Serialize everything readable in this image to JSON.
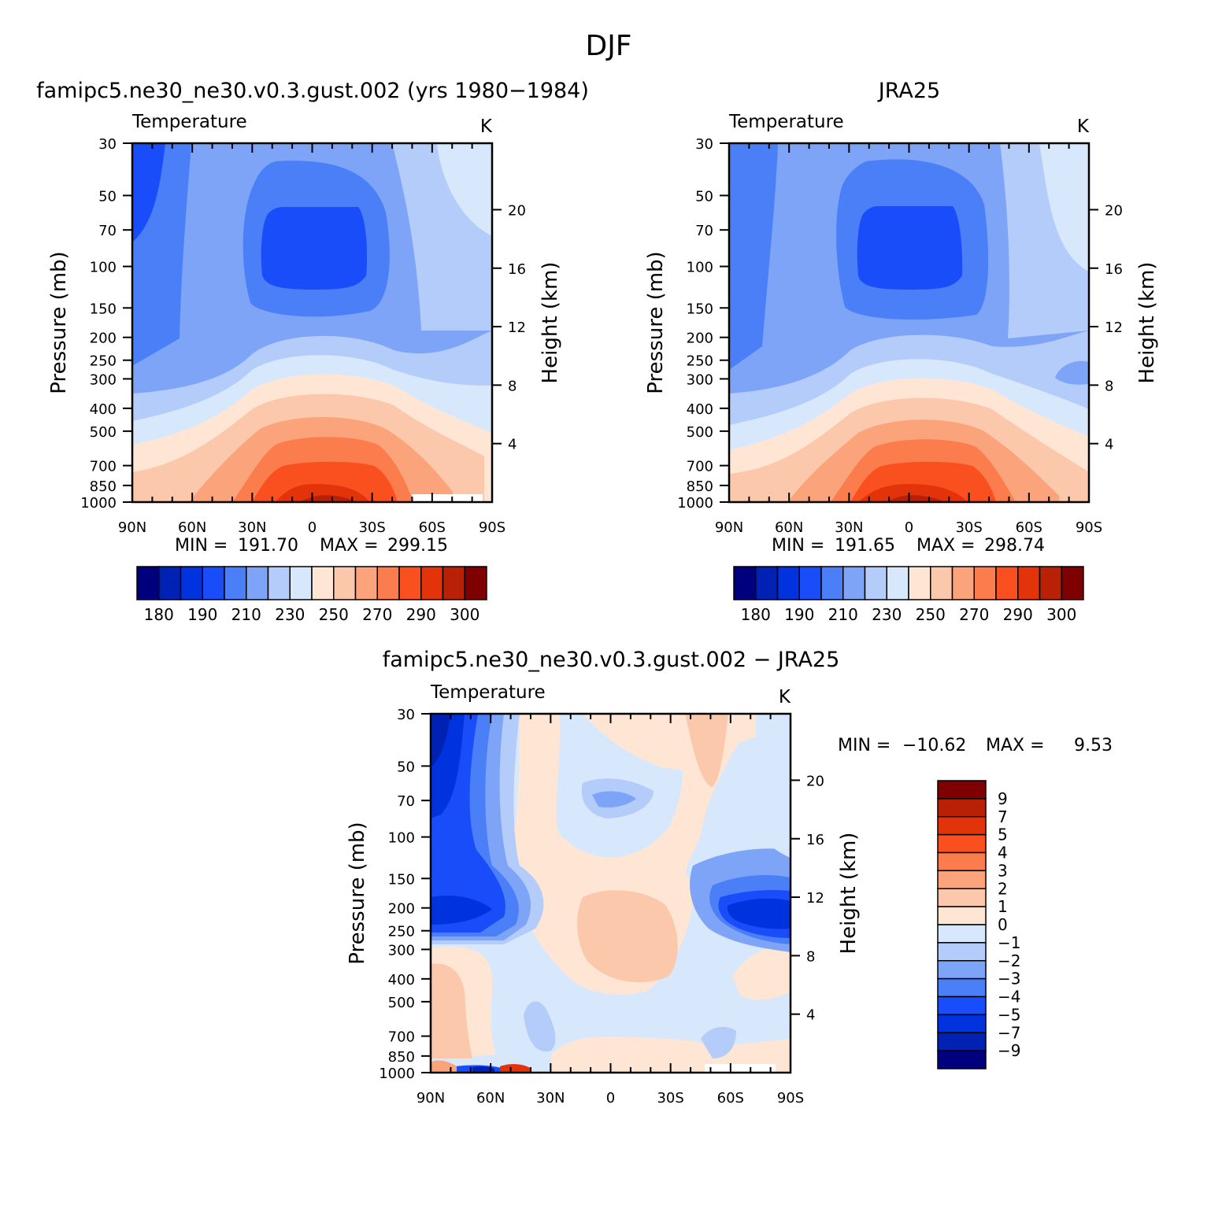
{
  "page": {
    "title": "DJF"
  },
  "colors": {
    "abs_palette": [
      "#00007f",
      "#0022b4",
      "#0033dd",
      "#1a4dfa",
      "#4a7ff8",
      "#7ea4f8",
      "#b4ccfa",
      "#d8e8fc",
      "#ffe6d4",
      "#fcc8ac",
      "#fba47c",
      "#fb7d4d",
      "#fa4f1f",
      "#e3330a",
      "#b92107",
      "#7f0000"
    ],
    "diff_palette": [
      "#00007f",
      "#0022b4",
      "#0033dd",
      "#1a4dfa",
      "#4a7ff8",
      "#7ea4f8",
      "#b4ccfa",
      "#d8e8fc",
      "#ffe6d4",
      "#fcc8ac",
      "#fba47c",
      "#fb7d4d",
      "#fa4f1f",
      "#e3330a",
      "#b92107",
      "#7f0000"
    ]
  },
  "chart_data": [
    {
      "type": "heatmap",
      "id": "panel-model",
      "title": "famipc5.ne30_ne30.v0.3.gust.002 (yrs 1980−1984)",
      "variable": "Temperature",
      "units": "K",
      "ylabel": "Pressure (mb)",
      "y2label": "Height (km)",
      "x_ticks": [
        "90N",
        "60N",
        "30N",
        "0",
        "30S",
        "60S",
        "90S"
      ],
      "y_ticks": [
        "30",
        "50",
        "70",
        "100",
        "150",
        "200",
        "250",
        "300",
        "400",
        "500",
        "700",
        "850",
        "1000"
      ],
      "y2_ticks": [
        "20",
        "16",
        "12",
        "8",
        "4"
      ],
      "min_label": "MIN =",
      "min_value": "191.70",
      "max_label": "MAX =",
      "max_value": "299.15",
      "colorbar_labels": [
        "180",
        "190",
        "210",
        "230",
        "250",
        "270",
        "290",
        "300"
      ]
    },
    {
      "type": "heatmap",
      "id": "panel-obs",
      "title": "JRA25",
      "variable": "Temperature",
      "units": "K",
      "ylabel": "Pressure (mb)",
      "y2label": "Height (km)",
      "x_ticks": [
        "90N",
        "60N",
        "30N",
        "0",
        "30S",
        "60S",
        "90S"
      ],
      "y_ticks": [
        "30",
        "50",
        "70",
        "100",
        "150",
        "200",
        "250",
        "300",
        "400",
        "500",
        "700",
        "850",
        "1000"
      ],
      "y2_ticks": [
        "20",
        "16",
        "12",
        "8",
        "4"
      ],
      "min_label": "MIN =",
      "min_value": "191.65",
      "max_label": "MAX =",
      "max_value": "298.74",
      "colorbar_labels": [
        "180",
        "190",
        "210",
        "230",
        "250",
        "270",
        "290",
        "300"
      ]
    },
    {
      "type": "heatmap",
      "id": "panel-diff",
      "title": "famipc5.ne30_ne30.v0.3.gust.002 − JRA25",
      "variable": "Temperature",
      "units": "K",
      "ylabel": "Pressure (mb)",
      "y2label": "Height (km)",
      "x_ticks": [
        "90N",
        "60N",
        "30N",
        "0",
        "30S",
        "60S",
        "90S"
      ],
      "y_ticks": [
        "30",
        "50",
        "70",
        "100",
        "150",
        "200",
        "250",
        "300",
        "400",
        "500",
        "700",
        "850",
        "1000"
      ],
      "y2_ticks": [
        "20",
        "16",
        "12",
        "8",
        "4"
      ],
      "min_label": "MIN =",
      "min_value": "−10.62",
      "max_label": "MAX =",
      "max_value": "9.53",
      "colorbar_labels": [
        "9",
        "7",
        "5",
        "4",
        "3",
        "2",
        "1",
        "0",
        "−1",
        "−2",
        "−3",
        "−4",
        "−5",
        "−7",
        "−9"
      ]
    }
  ]
}
